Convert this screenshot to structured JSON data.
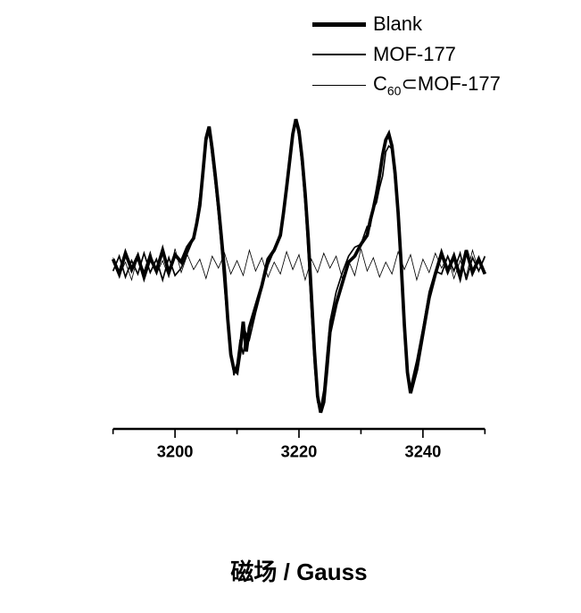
{
  "chart": {
    "type": "line",
    "background_color": "#ffffff",
    "x_axis": {
      "label": "磁场  /  Gauss",
      "label_fontsize": 26,
      "label_fontweight": "bold",
      "min": 3190,
      "max": 3250,
      "ticks_major": [
        3200,
        3220,
        3240
      ],
      "ticks_minor": [
        3190,
        3210,
        3230,
        3250
      ],
      "tick_label_fontsize": 22,
      "tick_label_fontweight": "bold",
      "axis_line_width": 3,
      "tick_len_major": 12,
      "tick_len_minor": 7
    },
    "y_axis": {
      "min": -100,
      "max": 100,
      "visible": false
    },
    "legend": {
      "position": "top-right",
      "fontsize": 22,
      "items": [
        {
          "label": "Blank",
          "line_width": 5
        },
        {
          "label": "MOF-177",
          "line_width": 2.5
        },
        {
          "label_html": "C<sub>60</sub>⊂MOF-177",
          "label": "C60⊂MOF-177",
          "line_width": 1
        }
      ]
    },
    "series": [
      {
        "name": "Blank",
        "color": "#000000",
        "line_width": 4.5,
        "x": [
          3190,
          3191,
          3192,
          3193,
          3194,
          3195,
          3196,
          3197,
          3198,
          3199,
          3200,
          3201,
          3202,
          3203,
          3203.5,
          3204,
          3204.5,
          3205,
          3205.5,
          3206,
          3206.5,
          3207,
          3207.5,
          3208,
          3208.5,
          3209,
          3209.5,
          3210,
          3210.5,
          3211,
          3211.5,
          3212,
          3213,
          3214,
          3215,
          3216,
          3217,
          3217.5,
          3218,
          3218.5,
          3219,
          3219.5,
          3220,
          3220.5,
          3221,
          3221.5,
          3222,
          3222.5,
          3223,
          3223.5,
          3224,
          3224.5,
          3225,
          3226,
          3227,
          3228,
          3229,
          3230,
          3231,
          3231.5,
          3232,
          3232.5,
          3233,
          3233.5,
          3234,
          3234.5,
          3235,
          3235.5,
          3236,
          3236.5,
          3237,
          3237.5,
          3238,
          3239,
          3240,
          3241,
          3242,
          3243,
          3244,
          3245,
          3246,
          3247,
          3248,
          3249,
          3250
        ],
        "y": [
          4,
          -6,
          8,
          -3,
          6,
          -8,
          5,
          -4,
          10,
          -5,
          7,
          2,
          12,
          18,
          28,
          40,
          62,
          85,
          93,
          78,
          60,
          40,
          18,
          -5,
          -36,
          -60,
          -70,
          -72,
          -58,
          -38,
          -58,
          -42,
          -28,
          -14,
          4,
          10,
          20,
          35,
          52,
          70,
          88,
          98,
          90,
          72,
          48,
          18,
          -20,
          -58,
          -88,
          -99,
          -92,
          -70,
          -45,
          -26,
          -12,
          2,
          6,
          14,
          20,
          30,
          38,
          48,
          60,
          74,
          84,
          88,
          80,
          62,
          35,
          0,
          -40,
          -72,
          -86,
          -70,
          -46,
          -22,
          -6,
          8,
          -4,
          6,
          -8,
          10,
          -5,
          4,
          -6
        ]
      },
      {
        "name": "MOF-177",
        "color": "#000000",
        "line_width": 2.0,
        "x": [
          3190,
          3191,
          3192,
          3193,
          3194,
          3195,
          3196,
          3197,
          3198,
          3199,
          3200,
          3201,
          3202,
          3203,
          3203.5,
          3204,
          3204.5,
          3205,
          3205.5,
          3206,
          3206.5,
          3207,
          3207.5,
          3208,
          3208.5,
          3209,
          3209.5,
          3210,
          3210.5,
          3211,
          3211.5,
          3212,
          3213,
          3214,
          3215,
          3216,
          3217,
          3217.5,
          3218,
          3218.5,
          3219,
          3219.5,
          3220,
          3220.5,
          3221,
          3221.5,
          3222,
          3222.5,
          3223,
          3223.5,
          3224,
          3224.5,
          3225,
          3226,
          3227,
          3228,
          3229,
          3230,
          3231,
          3231.5,
          3232,
          3232.5,
          3233,
          3233.5,
          3234,
          3234.5,
          3235,
          3235.5,
          3236,
          3236.5,
          3237,
          3237.5,
          3238,
          3239,
          3240,
          3241,
          3242,
          3243,
          3244,
          3245,
          3246,
          3247,
          3248,
          3249,
          3250
        ],
        "y": [
          -4,
          6,
          -8,
          3,
          -6,
          8,
          -5,
          4,
          -10,
          5,
          -7,
          -2,
          8,
          18,
          30,
          46,
          64,
          82,
          90,
          72,
          54,
          34,
          10,
          -16,
          -40,
          -58,
          -74,
          -66,
          -50,
          -60,
          -46,
          -50,
          -32,
          -16,
          0,
          10,
          22,
          36,
          54,
          72,
          90,
          96,
          86,
          66,
          40,
          6,
          -32,
          -68,
          -92,
          -96,
          -84,
          -60,
          -38,
          -18,
          -5,
          6,
          12,
          14,
          26,
          26,
          38,
          42,
          52,
          60,
          76,
          80,
          78,
          56,
          33,
          -2,
          -48,
          -74,
          -82,
          -64,
          -42,
          -18,
          -4,
          -6,
          6,
          -4,
          8,
          -10,
          5,
          -4,
          6
        ]
      },
      {
        "name": "C60⊂MOF-177",
        "color": "#000000",
        "line_width": 1.0,
        "x": [
          3190,
          3191,
          3192,
          3193,
          3194,
          3195,
          3196,
          3197,
          3198,
          3199,
          3200,
          3201,
          3202,
          3203,
          3204,
          3205,
          3206,
          3207,
          3208,
          3209,
          3210,
          3211,
          3212,
          3213,
          3214,
          3215,
          3216,
          3217,
          3218,
          3219,
          3220,
          3221,
          3222,
          3223,
          3224,
          3225,
          3226,
          3227,
          3228,
          3229,
          3230,
          3231,
          3232,
          3233,
          3234,
          3235,
          3236,
          3237,
          3238,
          3239,
          3240,
          3241,
          3242,
          3243,
          3244,
          3245,
          3246,
          3247,
          3248,
          3249,
          3250
        ],
        "y": [
          5,
          -7,
          2,
          -10,
          6,
          -4,
          9,
          -6,
          3,
          -8,
          11,
          -5,
          7,
          -3,
          4,
          -9,
          6,
          -2,
          8,
          -6,
          3,
          -7,
          10,
          -4,
          5,
          -8,
          2,
          -6,
          9,
          -3,
          7,
          -10,
          4,
          -5,
          8,
          -2,
          6,
          -9,
          3,
          -7,
          11,
          -4,
          5,
          -8,
          2,
          -6,
          9,
          -3,
          7,
          -10,
          4,
          -5,
          8,
          -2,
          6,
          -9,
          3,
          -7,
          10,
          -4,
          5
        ]
      }
    ]
  }
}
